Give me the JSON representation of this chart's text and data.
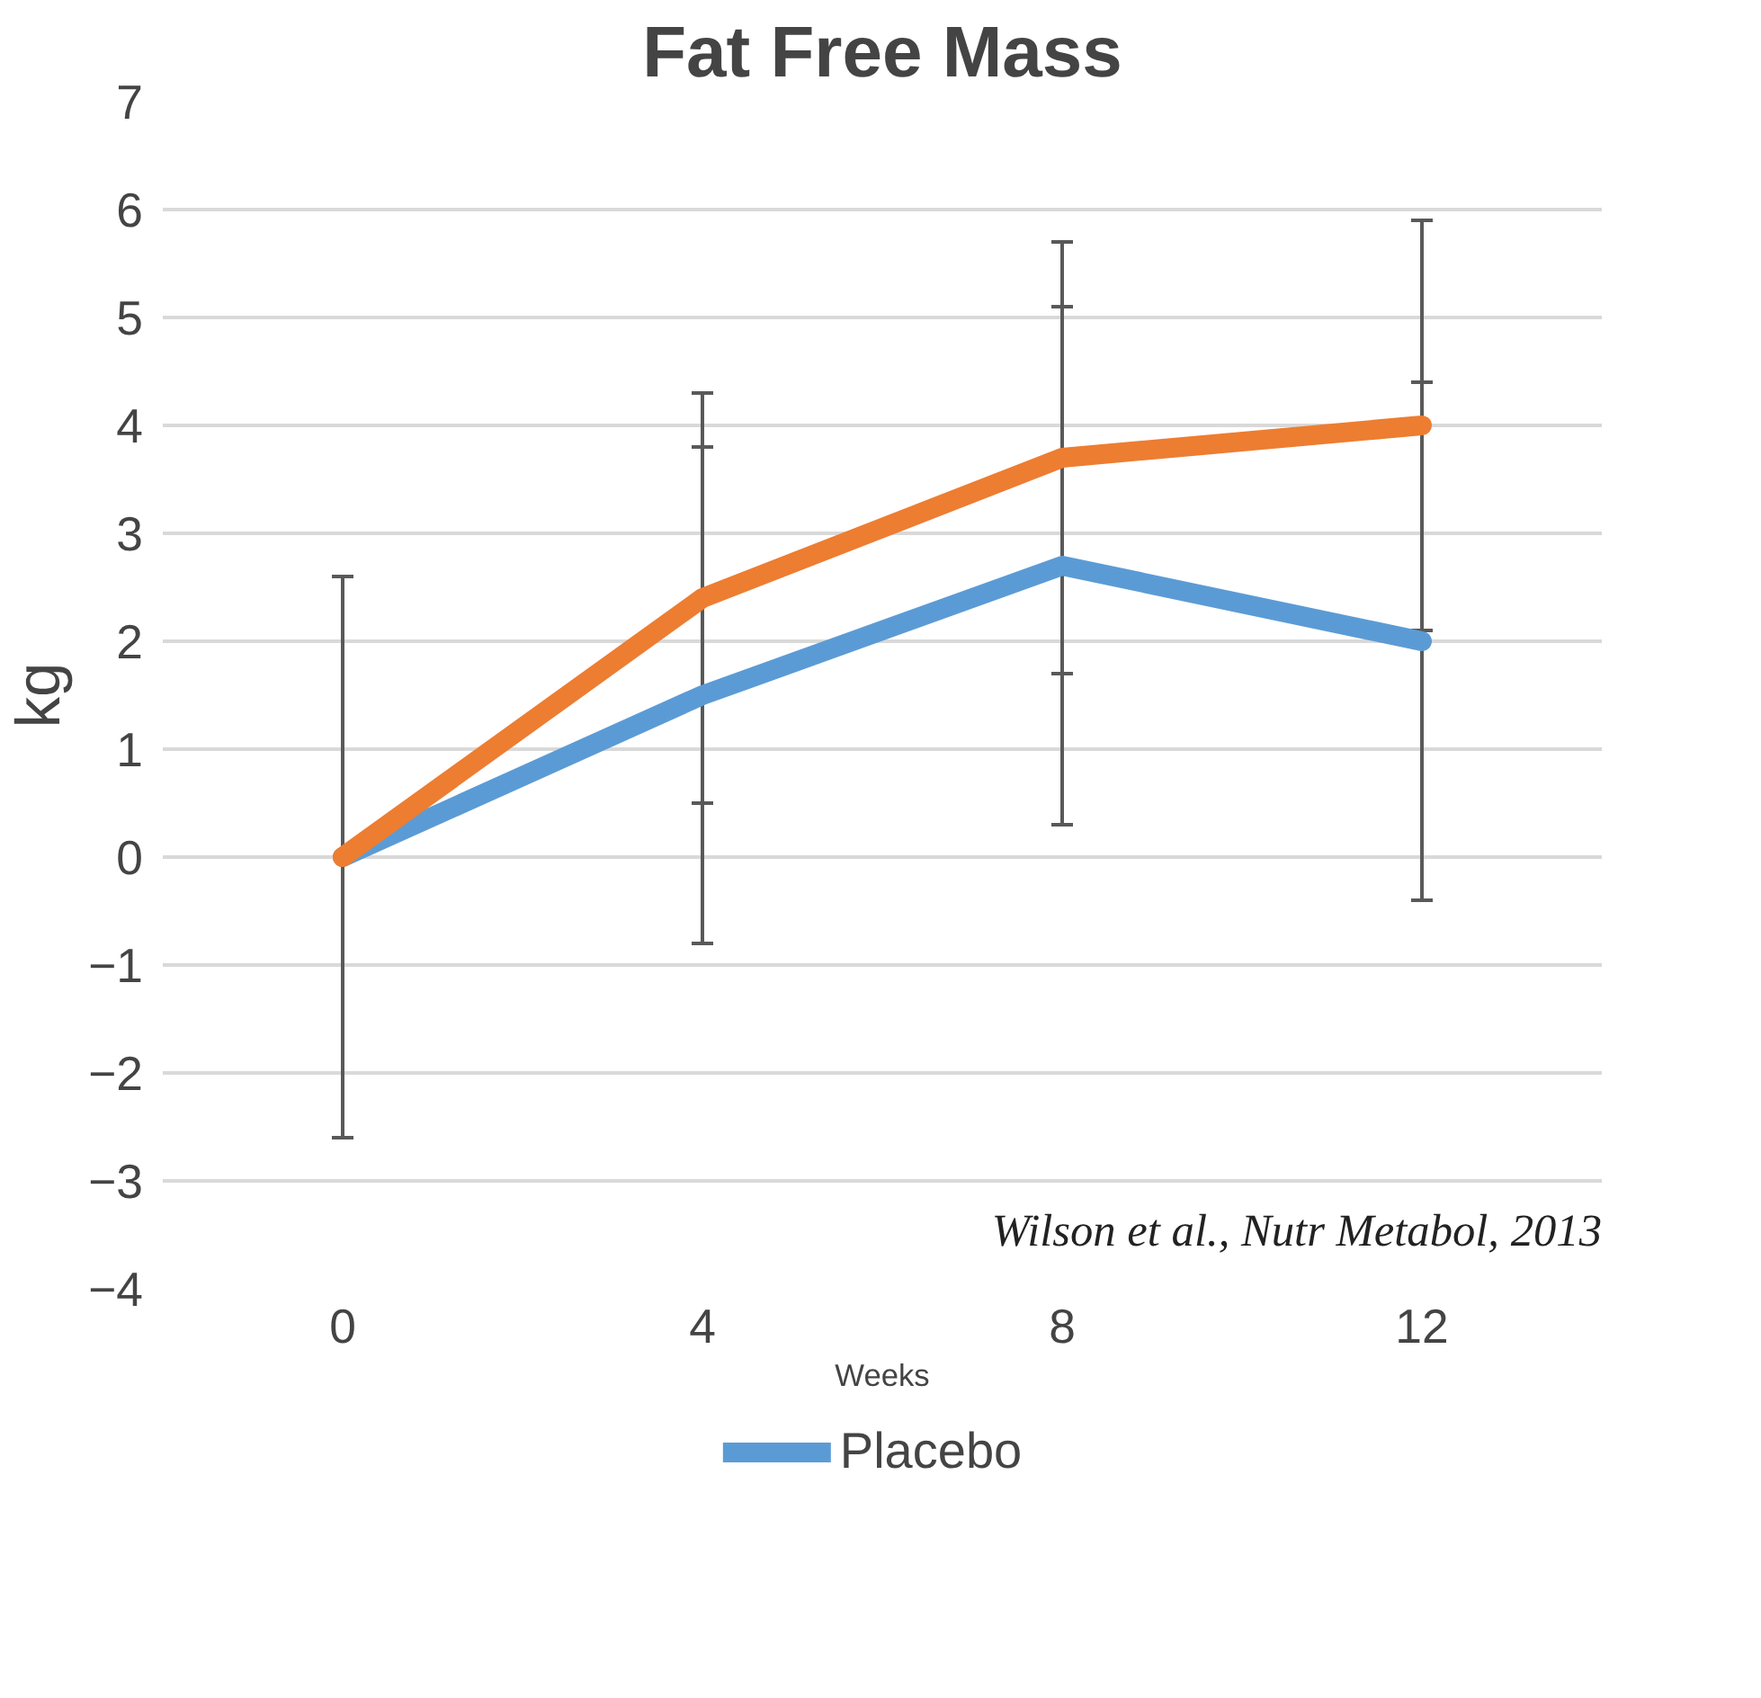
{
  "chart_data": {
    "type": "line",
    "title": "Fat Free Mass",
    "xlabel": "Weeks",
    "ylabel": "kg",
    "categories": [
      "0",
      "4",
      "8",
      "12"
    ],
    "series": [
      {
        "name": "Placebo",
        "color": "#5b9bd5",
        "values": [
          0,
          1.5,
          2.7,
          2.0
        ],
        "errors": [
          2.6,
          2.3,
          2.4,
          2.4
        ]
      },
      {
        "color": "#ed7d31",
        "values": [
          0,
          2.4,
          3.7,
          4.0
        ],
        "errors": [
          2.6,
          1.9,
          2.0,
          1.9
        ]
      }
    ],
    "ylim": [
      -4,
      7
    ],
    "yticks": [
      -4,
      -3,
      -2,
      -1,
      0,
      1,
      2,
      3,
      4,
      5,
      6,
      7
    ],
    "grid": "y",
    "legend": "bottom",
    "annotations": [
      "Wilson et al., Nutr Metabol, 2013"
    ]
  }
}
